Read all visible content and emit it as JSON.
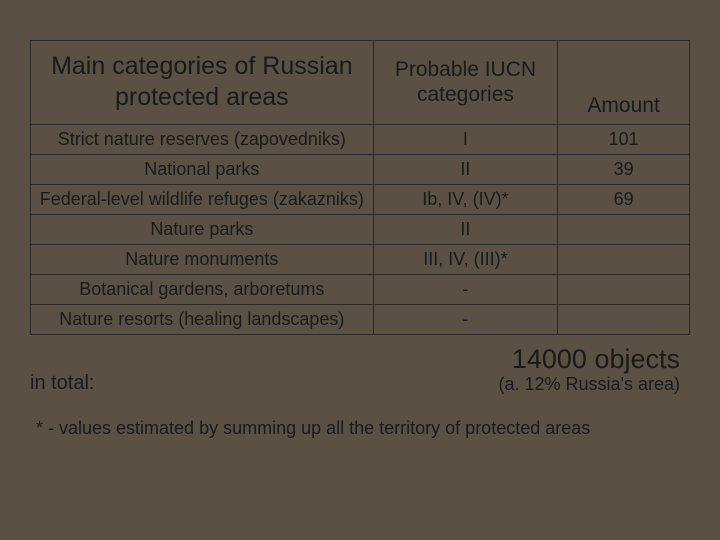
{
  "background_color": "#5a5144",
  "text_color": "#1a1a1a",
  "border_color": "#2a2a2a",
  "font_family": "Tahoma, Verdana, sans-serif",
  "table": {
    "headers": {
      "col1": "Main categories of Russian protected areas",
      "col2": "Probable IUCN categories",
      "col3": "Amount"
    },
    "header_fontsize_col1": 25,
    "header_fontsize_col2": 21,
    "header_fontsize_col3": 21,
    "body_fontsize": 18,
    "col_widths_pct": [
      52,
      28,
      20
    ],
    "rows": [
      {
        "category": "Strict nature reserves (zapovedniks)",
        "iucn": "I",
        "amount": "101"
      },
      {
        "category": "National parks",
        "iucn": "II",
        "amount": "39"
      },
      {
        "category": "Federal-level wildlife refuges (zakazniks)",
        "iucn": "Ib, IV, (IV)*",
        "amount": "69"
      },
      {
        "category": "Nature parks",
        "iucn": "II",
        "amount": ""
      },
      {
        "category": "Nature monuments",
        "iucn": "III, IV, (III)*",
        "amount": ""
      },
      {
        "category": "Botanical gardens, arboretums",
        "iucn": "-",
        "amount": ""
      },
      {
        "category": "Nature resorts (healing landscapes)",
        "iucn": "-",
        "amount": ""
      }
    ]
  },
  "totals": {
    "label": "in total:",
    "main": "14000 objects",
    "sub": "(a. 12% Russia's area)",
    "main_fontsize": 27,
    "sub_fontsize": 18,
    "label_fontsize": 20
  },
  "footnote": {
    "text": "* - values estimated by summing up all the territory of protected areas",
    "fontsize": 18
  }
}
